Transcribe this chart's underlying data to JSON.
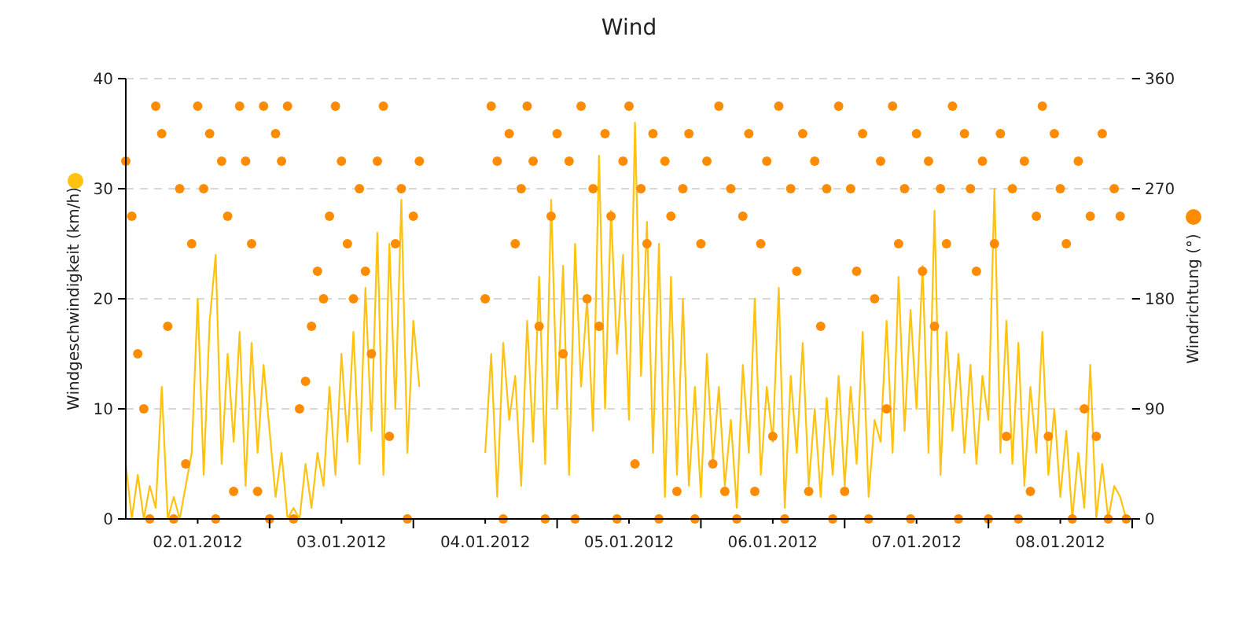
{
  "chart_data": {
    "type": "line",
    "title": "Wind",
    "ylabel": "Windgeschwindigkeit (km/h)",
    "y2label": "Windrichtung (°)",
    "x": [
      "2012-01-02T00:00",
      "2012-01-02T01:00",
      "2012-01-02T02:00",
      "2012-01-02T03:00",
      "2012-01-02T04:00",
      "2012-01-02T05:00",
      "2012-01-02T06:00",
      "2012-01-02T07:00",
      "2012-01-02T08:00",
      "2012-01-02T09:00",
      "2012-01-02T10:00",
      "2012-01-02T11:00",
      "2012-01-02T12:00",
      "2012-01-02T13:00",
      "2012-01-02T14:00",
      "2012-01-02T15:00",
      "2012-01-02T16:00",
      "2012-01-02T17:00",
      "2012-01-02T18:00",
      "2012-01-02T19:00",
      "2012-01-02T20:00",
      "2012-01-02T21:00",
      "2012-01-02T22:00",
      "2012-01-02T23:00",
      "2012-01-03T00:00",
      "2012-01-03T01:00",
      "2012-01-03T02:00",
      "2012-01-03T03:00",
      "2012-01-03T04:00",
      "2012-01-03T05:00",
      "2012-01-03T06:00",
      "2012-01-03T07:00",
      "2012-01-03T08:00",
      "2012-01-03T09:00",
      "2012-01-03T10:00",
      "2012-01-03T11:00",
      "2012-01-03T12:00",
      "2012-01-03T13:00",
      "2012-01-03T14:00",
      "2012-01-03T15:00",
      "2012-01-03T16:00",
      "2012-01-03T17:00",
      "2012-01-03T18:00",
      "2012-01-03T19:00",
      "2012-01-03T20:00",
      "2012-01-03T21:00",
      "2012-01-03T22:00",
      "2012-01-03T23:00",
      "2012-01-04T00:00",
      "2012-01-04T01:00",
      "2012-01-04T02:00",
      "2012-01-04T03:00",
      "2012-01-04T04:00",
      "2012-01-04T05:00",
      "2012-01-04T06:00",
      "2012-01-04T07:00",
      "2012-01-04T08:00",
      "2012-01-04T09:00",
      "2012-01-04T10:00",
      "2012-01-04T11:00",
      "2012-01-04T12:00",
      "2012-01-04T13:00",
      "2012-01-04T14:00",
      "2012-01-04T15:00",
      "2012-01-04T16:00",
      "2012-01-04T17:00",
      "2012-01-04T18:00",
      "2012-01-04T19:00",
      "2012-01-04T20:00",
      "2012-01-04T21:00",
      "2012-01-04T22:00",
      "2012-01-04T23:00",
      "2012-01-05T00:00",
      "2012-01-05T01:00",
      "2012-01-05T02:00",
      "2012-01-05T03:00",
      "2012-01-05T04:00",
      "2012-01-05T05:00",
      "2012-01-05T06:00",
      "2012-01-05T07:00",
      "2012-01-05T08:00",
      "2012-01-05T09:00",
      "2012-01-05T10:00",
      "2012-01-05T11:00",
      "2012-01-05T12:00",
      "2012-01-05T13:00",
      "2012-01-05T14:00",
      "2012-01-05T15:00",
      "2012-01-05T16:00",
      "2012-01-05T17:00",
      "2012-01-05T18:00",
      "2012-01-05T19:00",
      "2012-01-05T20:00",
      "2012-01-05T21:00",
      "2012-01-05T22:00",
      "2012-01-05T23:00",
      "2012-01-06T00:00",
      "2012-01-06T01:00",
      "2012-01-06T02:00",
      "2012-01-06T03:00",
      "2012-01-06T04:00",
      "2012-01-06T05:00",
      "2012-01-06T06:00",
      "2012-01-06T07:00",
      "2012-01-06T08:00",
      "2012-01-06T09:00",
      "2012-01-06T10:00",
      "2012-01-06T11:00",
      "2012-01-06T12:00",
      "2012-01-06T13:00",
      "2012-01-06T14:00",
      "2012-01-06T15:00",
      "2012-01-06T16:00",
      "2012-01-06T17:00",
      "2012-01-06T18:00",
      "2012-01-06T19:00",
      "2012-01-06T20:00",
      "2012-01-06T21:00",
      "2012-01-06T22:00",
      "2012-01-06T23:00",
      "2012-01-07T00:00",
      "2012-01-07T01:00",
      "2012-01-07T02:00",
      "2012-01-07T03:00",
      "2012-01-07T04:00",
      "2012-01-07T05:00",
      "2012-01-07T06:00",
      "2012-01-07T07:00",
      "2012-01-07T08:00",
      "2012-01-07T09:00",
      "2012-01-07T10:00",
      "2012-01-07T11:00",
      "2012-01-07T12:00",
      "2012-01-07T13:00",
      "2012-01-07T14:00",
      "2012-01-07T15:00",
      "2012-01-07T16:00",
      "2012-01-07T17:00",
      "2012-01-07T18:00",
      "2012-01-07T19:00",
      "2012-01-07T20:00",
      "2012-01-07T21:00",
      "2012-01-07T22:00",
      "2012-01-07T23:00",
      "2012-01-08T00:00",
      "2012-01-08T01:00",
      "2012-01-08T02:00",
      "2012-01-08T03:00",
      "2012-01-08T04:00",
      "2012-01-08T05:00",
      "2012-01-08T06:00",
      "2012-01-08T07:00",
      "2012-01-08T08:00",
      "2012-01-08T09:00",
      "2012-01-08T10:00",
      "2012-01-08T11:00",
      "2012-01-08T12:00",
      "2012-01-08T13:00",
      "2012-01-08T14:00",
      "2012-01-08T15:00",
      "2012-01-08T16:00",
      "2012-01-08T17:00",
      "2012-01-08T18:00",
      "2012-01-08T19:00",
      "2012-01-08T20:00",
      "2012-01-08T21:00",
      "2012-01-08T22:00",
      "2012-01-08T23:00"
    ],
    "xlim": [
      "2012-01-02T00:00",
      "2012-01-09T00:00"
    ],
    "xticks": [
      {
        "value": "2012-01-02T12:00",
        "label": "02.01.2012"
      },
      {
        "value": "2012-01-03T00:00",
        "label": null
      },
      {
        "value": "2012-01-03T12:00",
        "label": "03.01.2012"
      },
      {
        "value": "2012-01-04T00:00",
        "label": null
      },
      {
        "value": "2012-01-04T12:00",
        "label": "04.01.2012"
      },
      {
        "value": "2012-01-05T00:00",
        "label": null
      },
      {
        "value": "2012-01-05T12:00",
        "label": "05.01.2012"
      },
      {
        "value": "2012-01-06T00:00",
        "label": null
      },
      {
        "value": "2012-01-06T12:00",
        "label": "06.01.2012"
      },
      {
        "value": "2012-01-07T00:00",
        "label": null
      },
      {
        "value": "2012-01-07T12:00",
        "label": "07.01.2012"
      },
      {
        "value": "2012-01-08T00:00",
        "label": null
      },
      {
        "value": "2012-01-08T12:00",
        "label": "08.01.2012"
      },
      {
        "value": "2012-01-09T00:00",
        "label": null
      }
    ],
    "ylim": [
      0,
      40
    ],
    "yticks": [
      0,
      10,
      20,
      30,
      40
    ],
    "y2lim": [
      0,
      360
    ],
    "y2ticks": [
      0,
      90,
      180,
      270,
      360
    ],
    "grid": "y",
    "series": [
      {
        "color": "#ffc20e",
        "values": [
          5,
          0,
          4,
          0,
          3,
          1,
          12,
          0,
          2,
          0,
          3,
          6,
          20,
          4,
          18,
          24,
          5,
          15,
          7,
          17,
          3,
          16,
          6,
          14,
          8,
          2,
          6,
          0,
          1,
          0,
          5,
          1,
          6,
          3,
          12,
          4,
          15,
          7,
          17,
          5,
          21,
          8,
          26,
          4,
          25,
          10,
          29,
          6,
          18,
          12,
          null,
          null,
          null,
          null,
          null,
          null,
          null,
          null,
          null,
          null,
          6,
          15,
          2,
          16,
          9,
          13,
          3,
          18,
          7,
          22,
          5,
          29,
          10,
          23,
          4,
          25,
          12,
          20,
          8,
          33,
          10,
          28,
          15,
          24,
          9,
          36,
          13,
          27,
          6,
          25,
          2,
          22,
          4,
          20,
          3,
          12,
          2,
          15,
          5,
          12,
          3,
          9,
          1,
          14,
          6,
          20,
          4,
          12,
          7,
          21,
          1,
          13,
          6,
          16,
          3,
          10,
          2,
          11,
          4,
          13,
          3,
          12,
          5,
          17,
          2,
          9,
          7,
          18,
          6,
          22,
          8,
          19,
          10,
          23,
          6,
          28,
          4,
          17,
          8,
          15,
          6,
          14,
          5,
          13,
          9,
          30,
          6,
          18,
          5,
          16,
          3,
          12,
          6,
          17,
          4,
          10,
          2,
          8,
          0,
          6,
          1,
          14,
          0,
          5,
          0,
          3,
          2,
          0
        ]
      },
      {
        "type": "scatter",
        "axis": "y2",
        "color": "#ff8c00",
        "marker": "circle",
        "values": [
          292.5,
          247.5,
          135,
          90,
          0,
          337.5,
          315,
          157.5,
          0,
          270,
          45,
          225,
          337.5,
          270,
          315,
          0,
          292.5,
          247.5,
          22.5,
          337.5,
          292.5,
          225,
          22.5,
          337.5,
          0,
          315,
          292.5,
          337.5,
          0,
          90,
          112.5,
          157.5,
          202.5,
          180,
          247.5,
          337.5,
          292.5,
          225,
          180,
          270,
          202.5,
          135,
          292.5,
          337.5,
          67.5,
          225,
          270,
          0,
          247.5,
          292.5,
          null,
          null,
          null,
          null,
          null,
          null,
          null,
          null,
          null,
          null,
          180,
          337.5,
          292.5,
          0,
          315,
          225,
          270,
          337.5,
          292.5,
          157.5,
          0,
          247.5,
          315,
          135,
          292.5,
          0,
          337.5,
          180,
          270,
          157.5,
          315,
          247.5,
          0,
          292.5,
          337.5,
          45,
          270,
          225,
          315,
          0,
          292.5,
          247.5,
          22.5,
          270,
          315,
          0,
          225,
          292.5,
          45,
          337.5,
          22.5,
          270,
          0,
          247.5,
          315,
          22.5,
          225,
          292.5,
          67.5,
          337.5,
          0,
          270,
          202.5,
          315,
          22.5,
          292.5,
          157.5,
          270,
          0,
          337.5,
          22.5,
          270,
          202.5,
          315,
          0,
          180,
          292.5,
          90,
          337.5,
          225,
          270,
          0,
          315,
          202.5,
          292.5,
          157.5,
          270,
          225,
          337.5,
          0,
          315,
          270,
          202.5,
          292.5,
          0,
          225,
          315,
          67.5,
          270,
          0,
          292.5,
          22.5,
          247.5,
          337.5,
          67.5,
          315,
          270,
          225,
          0,
          292.5,
          90,
          247.5,
          67.5,
          315,
          0,
          270,
          247.5,
          0
        ]
      }
    ]
  }
}
